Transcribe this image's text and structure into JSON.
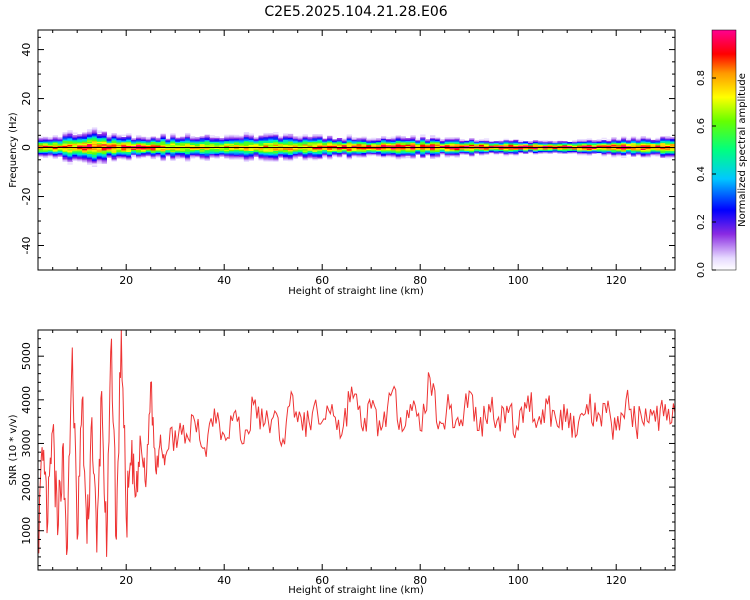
{
  "title": "C2E5.2025.104.21.28.E06",
  "chart_data": [
    {
      "type": "heatmap",
      "xlabel": "Height of straight line (km)",
      "ylabel": "Frequency (Hz)",
      "xlim": [
        2,
        132
      ],
      "ylim": [
        -50,
        48
      ],
      "xticks": [
        20,
        40,
        60,
        80,
        100,
        120
      ],
      "yticks": [
        -40,
        -20,
        0,
        20,
        40
      ],
      "colorbar": {
        "label": "Normalized spectral amplitude",
        "range": [
          0,
          1
        ],
        "ticks": [
          "0.0",
          "0.2",
          "0.4",
          "0.6",
          "0.8"
        ],
        "tick_values": [
          0.0,
          0.2,
          0.4,
          0.6,
          0.8
        ]
      },
      "band": {
        "center_hz": 0,
        "profile": [
          {
            "x": 2,
            "halfwidth_hz": 3.5,
            "peak": 0.85
          },
          {
            "x": 8,
            "halfwidth_hz": 5,
            "peak": 0.8
          },
          {
            "x": 12,
            "halfwidth_hz": 6,
            "peak": 0.9
          },
          {
            "x": 18,
            "halfwidth_hz": 4.5,
            "peak": 0.85
          },
          {
            "x": 22,
            "halfwidth_hz": 3.5,
            "peak": 0.95
          },
          {
            "x": 30,
            "halfwidth_hz": 4.5,
            "peak": 0.75
          },
          {
            "x": 40,
            "halfwidth_hz": 4.5,
            "peak": 0.75
          },
          {
            "x": 55,
            "halfwidth_hz": 4.5,
            "peak": 0.8
          },
          {
            "x": 65,
            "halfwidth_hz": 3.5,
            "peak": 0.9
          },
          {
            "x": 80,
            "halfwidth_hz": 3.5,
            "peak": 0.9
          },
          {
            "x": 95,
            "halfwidth_hz": 2.5,
            "peak": 0.95
          },
          {
            "x": 110,
            "halfwidth_hz": 2,
            "peak": 0.95
          },
          {
            "x": 120,
            "halfwidth_hz": 3,
            "peak": 0.9
          },
          {
            "x": 132,
            "halfwidth_hz": 3.5,
            "peak": 0.9
          }
        ]
      }
    },
    {
      "type": "line",
      "xlabel": "Height of straight line (km)",
      "ylabel": "SNR (10 * v/v)",
      "xlim": [
        2,
        132
      ],
      "ylim": [
        100,
        5600
      ],
      "xticks": [
        20,
        40,
        60,
        80,
        100,
        120
      ],
      "yticks": [
        1000,
        2000,
        3000,
        4000,
        5000
      ],
      "color": "#ee3333",
      "series": [
        {
          "x": [
            2,
            3,
            4,
            5,
            6,
            7,
            8,
            9,
            10,
            11,
            12,
            13,
            14,
            15,
            16,
            17,
            18,
            19,
            20,
            21,
            22,
            23,
            24,
            25,
            26,
            27,
            28,
            30,
            32,
            34,
            36,
            38,
            40,
            42,
            44,
            46,
            48,
            50,
            52,
            54,
            56,
            58,
            60,
            62,
            64,
            66,
            68,
            70,
            72,
            74,
            76,
            78,
            80,
            82,
            84,
            86,
            88,
            90,
            92,
            94,
            96,
            98,
            100,
            102,
            104,
            106,
            108,
            110,
            112,
            114,
            116,
            118,
            120,
            122,
            124,
            126,
            128,
            130,
            132
          ],
          "values": [
            900,
            2600,
            1200,
            3300,
            900,
            2900,
            600,
            5200,
            800,
            4000,
            700,
            3600,
            500,
            4200,
            400,
            5400,
            800,
            5600,
            1300,
            2500,
            1800,
            3000,
            2000,
            4400,
            2400,
            3200,
            2700,
            3300,
            3000,
            3500,
            2900,
            3800,
            3200,
            3700,
            3000,
            3900,
            3400,
            3600,
            3100,
            4100,
            3300,
            3700,
            3500,
            3900,
            3200,
            4300,
            3400,
            3800,
            3300,
            4100,
            3600,
            3900,
            3300,
            4500,
            3500,
            3800,
            3400,
            4200,
            3300,
            3900,
            3600,
            3700,
            3300,
            4100,
            3500,
            3900,
            3400,
            3800,
            3200,
            3900,
            3500,
            3700,
            3300,
            4000,
            3400,
            3800,
            3500,
            3900,
            3700
          ]
        }
      ]
    }
  ]
}
